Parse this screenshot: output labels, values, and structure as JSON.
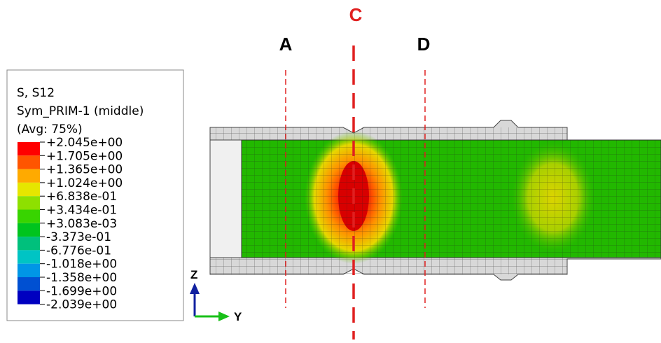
{
  "section_labels": {
    "a": "A",
    "c": "C",
    "d": "D"
  },
  "legend": {
    "title": [
      "S, S12",
      "Sym_PRIM-1 (middle)",
      "(Avg: 75%)"
    ],
    "levels": [
      "+2.045e+00",
      "+1.705e+00",
      "+1.365e+00",
      "+1.024e+00",
      "+6.838e-01",
      "+3.434e-01",
      "+3.083e-03",
      "-3.373e-01",
      "-6.776e-01",
      "-1.018e+00",
      "-1.358e+00",
      "-1.699e+00",
      "-2.039e+00"
    ],
    "colors": [
      "#ff0000",
      "#ff5500",
      "#ffaa00",
      "#e6e600",
      "#8ee000",
      "#38d400",
      "#00c41e",
      "#00c07c",
      "#00c4c4",
      "#0096e6",
      "#0050d2",
      "#0000c0"
    ]
  },
  "triad": {
    "z": "Z",
    "y": "Y"
  }
}
